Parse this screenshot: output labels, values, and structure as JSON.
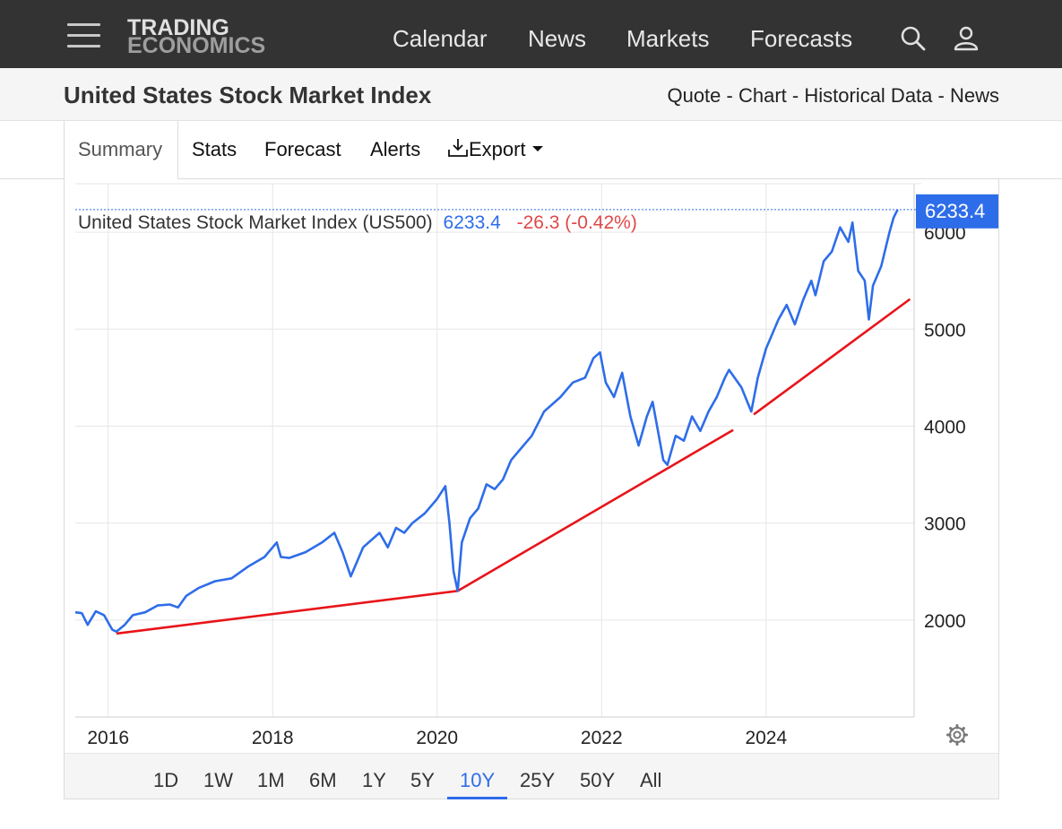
{
  "header": {
    "logo_line1": "TRADING",
    "logo_line2": "ECONOMICS",
    "nav": [
      "Calendar",
      "News",
      "Markets",
      "Forecasts"
    ],
    "icons": [
      "menu-icon",
      "search-icon",
      "user-icon"
    ]
  },
  "title_bar": {
    "title": "United States Stock Market Index",
    "links": [
      "Quote",
      "Chart",
      "Historical Data",
      "News"
    ],
    "separator": "-"
  },
  "tabs": {
    "summary": "Summary",
    "stats": "Stats",
    "forecast": "Forecast",
    "alerts": "Alerts",
    "export": "Export"
  },
  "ranges": [
    "1D",
    "1W",
    "1M",
    "6M",
    "1Y",
    "5Y",
    "10Y",
    "25Y",
    "50Y",
    "All"
  ],
  "active_range": "10Y",
  "colors": {
    "line": "#2e6de9",
    "trend": "#e8141a",
    "negative": "#e04848",
    "header_bg": "#333333"
  },
  "chart_data": {
    "type": "line",
    "legend": {
      "name": "United States Stock Market Index (US500)",
      "last": "6233.4",
      "change": "-26.3 (-0.42%)"
    },
    "last_value_label": "6233.4",
    "x_ticks": [
      "2016",
      "2018",
      "2020",
      "2022",
      "2024"
    ],
    "y_ticks": [
      "2000",
      "3000",
      "4000",
      "5000",
      "6000"
    ],
    "xlim": [
      2015.6,
      2025.8
    ],
    "ylim": [
      1000,
      6500
    ],
    "grid": true,
    "series": [
      {
        "x": [
          2015.6,
          2015.68,
          2015.75,
          2015.85,
          2015.95,
          2016.05,
          2016.1,
          2016.2,
          2016.3,
          2016.45,
          2016.6,
          2016.75,
          2016.85,
          2016.95,
          2017.1,
          2017.3,
          2017.5,
          2017.7,
          2017.9,
          2018.05,
          2018.1,
          2018.2,
          2018.4,
          2018.6,
          2018.75,
          2018.85,
          2018.95,
          2019.1,
          2019.3,
          2019.4,
          2019.5,
          2019.6,
          2019.7,
          2019.85,
          2020.0,
          2020.1,
          2020.15,
          2020.2,
          2020.25,
          2020.3,
          2020.4,
          2020.5,
          2020.6,
          2020.7,
          2020.8,
          2020.9,
          2021.0,
          2021.15,
          2021.3,
          2021.5,
          2021.65,
          2021.8,
          2021.9,
          2021.98,
          2022.05,
          2022.15,
          2022.25,
          2022.35,
          2022.45,
          2022.55,
          2022.62,
          2022.75,
          2022.8,
          2022.9,
          2023.0,
          2023.1,
          2023.2,
          2023.3,
          2023.4,
          2023.5,
          2023.55,
          2023.7,
          2023.82,
          2023.9,
          2024.0,
          2024.15,
          2024.25,
          2024.35,
          2024.45,
          2024.55,
          2024.6,
          2024.7,
          2024.8,
          2024.9,
          2025.0,
          2025.05,
          2025.12,
          2025.2,
          2025.25,
          2025.3,
          2025.4,
          2025.5,
          2025.55,
          2025.6
        ],
        "y": [
          2080,
          2070,
          1950,
          2090,
          2050,
          1900,
          1880,
          1950,
          2050,
          2080,
          2150,
          2160,
          2130,
          2250,
          2330,
          2400,
          2430,
          2550,
          2650,
          2800,
          2650,
          2640,
          2700,
          2800,
          2900,
          2700,
          2450,
          2750,
          2900,
          2750,
          2950,
          2900,
          3000,
          3100,
          3250,
          3380,
          3000,
          2500,
          2300,
          2800,
          3050,
          3150,
          3400,
          3350,
          3450,
          3650,
          3750,
          3900,
          4150,
          4300,
          4450,
          4500,
          4700,
          4760,
          4450,
          4300,
          4550,
          4100,
          3800,
          4100,
          4250,
          3650,
          3600,
          3900,
          3850,
          4100,
          3950,
          4150,
          4300,
          4500,
          4580,
          4400,
          4150,
          4500,
          4800,
          5100,
          5250,
          5050,
          5300,
          5500,
          5350,
          5700,
          5800,
          6050,
          5900,
          6100,
          5600,
          5500,
          5100,
          5450,
          5650,
          6000,
          6150,
          6233.4
        ]
      }
    ],
    "trendlines": [
      {
        "x": [
          2016.1,
          2020.25
        ],
        "y": [
          1860,
          2300
        ]
      },
      {
        "x": [
          2020.25,
          2023.6
        ],
        "y": [
          2300,
          3960
        ]
      },
      {
        "x": [
          2023.85,
          2025.75
        ],
        "y": [
          4120,
          5310
        ]
      }
    ]
  }
}
